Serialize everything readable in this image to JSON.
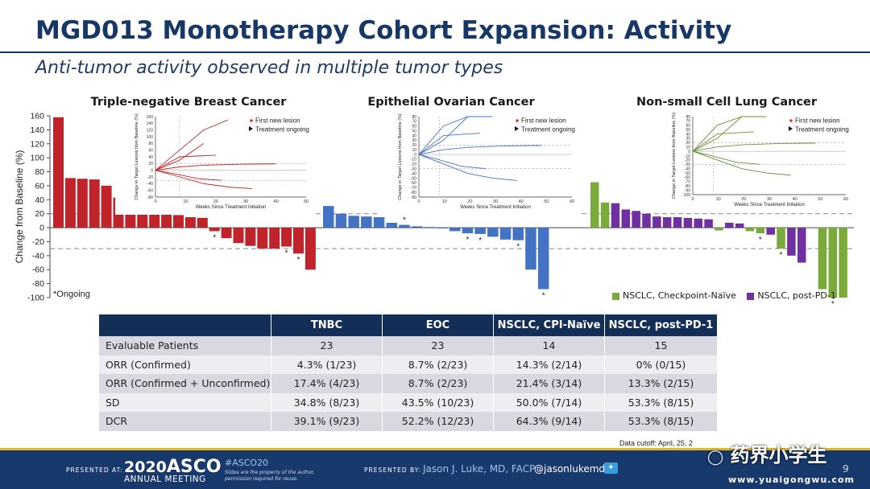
{
  "slide": {
    "title": "MGD013 Monotherapy Cohort Expansion: Activity",
    "subtitle": "Anti-tumor activity observed in multiple tumor types",
    "page_number": "9",
    "data_cutoff": "Data cutoff: April, 25, 2"
  },
  "footer": {
    "presented_at": "PRESENTED AT:",
    "meeting_year": "2020",
    "meeting_name": "ASCO",
    "meeting_sub": "ANNUAL MEETING",
    "hashtag": "#ASCO20",
    "disclaimer_1": "Slides are the property of the author,",
    "disclaimer_2": "permission required for reuse.",
    "presented_by": "PRESENTED BY:",
    "presenter": "Jason J. Luke, MD, FACP",
    "handle": "@jasonlukemd",
    "watermark_cn": "药界小学生",
    "watermark_url": "www.yuaigongwu.com"
  },
  "chart_data": {
    "type": "bar",
    "ylabel": "Change from Baseline (%)",
    "ylim": [
      -100,
      160
    ],
    "yticks": [
      160,
      140,
      120,
      100,
      80,
      60,
      40,
      20,
      0,
      -20,
      -40,
      -60,
      -80,
      -100
    ],
    "reference_lines": [
      20,
      -30
    ],
    "footnote": "*Ongoing",
    "colors": {
      "TNBC": "#c0242a",
      "EOC": "#4472c4",
      "NSCLC, Checkpoint-Naïve": "#7aab3a",
      "NSCLC, post-PD-1": "#7030a0"
    },
    "panel_titles": [
      "Triple-negative Breast Cancer",
      "Epithelial Ovarian Cancer",
      "Non-small Cell Lung Cancer"
    ],
    "legend": [
      "NSCLC, Checkpoint-Naïve",
      "NSCLC, post-PD-1"
    ],
    "series": [
      {
        "group": "TNBC",
        "values": [
          158,
          71,
          70,
          69,
          60,
          43,
          30,
          23,
          22,
          21,
          18,
          15,
          14,
          -5,
          -15,
          -22,
          -26,
          -30,
          -30,
          -27,
          -37,
          -60
        ],
        "ongoing": [
          5,
          13,
          19,
          20
        ]
      },
      {
        "group": "EOC",
        "values": [
          31,
          20,
          17,
          16,
          15,
          7,
          4,
          2,
          1,
          0,
          -5,
          -8,
          -9,
          -13,
          -17,
          -18,
          -60,
          -88
        ],
        "ongoing": [
          6,
          11,
          12,
          15,
          17
        ]
      },
      {
        "group": "NSCLC, Checkpoint-Naïve",
        "positions": [
          0,
          1,
          12,
          15,
          16,
          18,
          22,
          23,
          24
        ],
        "values": [
          65,
          36,
          -4,
          -5,
          -8,
          -30,
          -88,
          -100,
          -100
        ],
        "ongoing": [
          16,
          18,
          23
        ]
      },
      {
        "group": "NSCLC, post-PD-1",
        "positions": [
          2,
          3,
          4,
          5,
          6,
          7,
          8,
          9,
          10,
          11,
          13,
          14,
          17,
          19,
          20
        ],
        "values": [
          35,
          26,
          24,
          20,
          16,
          15,
          15,
          14,
          13,
          12,
          7,
          6,
          -10,
          -40,
          -50
        ],
        "ongoing": []
      }
    ],
    "insets": [
      {
        "xlabel": "Weeks Since Treatment Initiation",
        "ylabel": "Change in Target Lesions from Baseline (%)",
        "xticks": [
          0,
          10,
          20,
          30,
          40,
          50
        ],
        "yticks": [
          160,
          140,
          120,
          100,
          80,
          60,
          40,
          20,
          0,
          -20,
          -40,
          -60,
          -80
        ],
        "ylim": [
          -80,
          160
        ],
        "xlim": [
          0,
          50
        ],
        "legend": [
          "First new lesion",
          "Treatment ongoing"
        ]
      },
      {
        "xlabel": "Weeks Since Treatment Initiation",
        "ylabel": "Change in Target Lesions from Baseline (%)",
        "xticks": [
          0,
          10,
          20,
          30,
          40,
          50,
          60
        ],
        "yticks": [
          80,
          70,
          60,
          50,
          40,
          30,
          20,
          10,
          0,
          -10,
          -20,
          -30,
          -40,
          -50,
          -60,
          -70,
          -80,
          -90
        ],
        "ylim": [
          -90,
          80
        ],
        "xlim": [
          0,
          60
        ],
        "legend": [
          "First new lesion",
          "Treatment ongoing"
        ]
      },
      {
        "xlabel": "Weeks Since Treatment Initiation",
        "ylabel": "Change in Target Lesions from Baseline (%)",
        "xticks": [
          0,
          10,
          20,
          30,
          40,
          50,
          60
        ],
        "yticks": [
          80,
          70,
          60,
          50,
          40,
          30,
          20,
          10,
          0,
          -10,
          -20,
          -30,
          -40,
          -50,
          -60,
          -70,
          -80,
          -90,
          -100
        ],
        "ylim": [
          -100,
          80
        ],
        "xlim": [
          0,
          60
        ],
        "legend": [
          "First new lesion",
          "Treatment ongoing"
        ]
      }
    ]
  },
  "table": {
    "headers": [
      "",
      "TNBC",
      "EOC",
      "NSCLC, CPI-Naïve",
      "NSCLC, post-PD-1"
    ],
    "rows": [
      [
        "Evaluable Patients",
        "23",
        "23",
        "14",
        "15"
      ],
      [
        "ORR (Confirmed)",
        "4.3% (1/23)",
        "8.7% (2/23)",
        "14.3% (2/14)",
        "0% (0/15)"
      ],
      [
        "ORR (Confirmed + Unconfirmed)",
        "17.4% (4/23)",
        "8.7% (2/23)",
        "21.4% (3/14)",
        "13.3% (2/15)"
      ],
      [
        "SD",
        "34.8% (8/23)",
        "43.5% (10/23)",
        "50.0% (7/14)",
        "53.3% (8/15)"
      ],
      [
        "DCR",
        "39.1% (9/23)",
        "52.2% (12/23)",
        "64.3% (9/14)",
        "53.3% (8/15)"
      ]
    ]
  }
}
